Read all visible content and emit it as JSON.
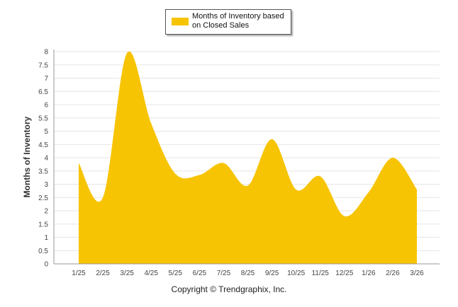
{
  "chart_data": {
    "type": "area",
    "categories": [
      "1/25",
      "2/25",
      "3/25",
      "4/25",
      "5/25",
      "6/25",
      "7/25",
      "8/25",
      "9/25",
      "10/25",
      "11/25",
      "12/25",
      "1/26",
      "2/26",
      "3/26"
    ],
    "series": [
      {
        "name": "Months of Inventory based on Closed Sales",
        "values": [
          3.8,
          2.5,
          7.95,
          5.3,
          3.4,
          3.35,
          3.8,
          2.95,
          4.7,
          2.8,
          3.3,
          1.8,
          2.7,
          4.0,
          2.8
        ]
      }
    ],
    "ylabel": "Months of Inventory",
    "xlabel": "",
    "ylim": [
      0,
      8
    ],
    "yticks": [
      0,
      0.5,
      1,
      1.5,
      2,
      2.5,
      3,
      3.5,
      4,
      4.5,
      5,
      5.5,
      6,
      6.5,
      7,
      7.5,
      8
    ],
    "grid": true,
    "legend_position": "top",
    "colors": {
      "series": "#f7c403",
      "grid": "#e6e6e6",
      "axis": "#999999"
    }
  },
  "legend": {
    "label": "Months of Inventory based on Closed Sales"
  },
  "footer": {
    "copyright": "Copyright © Trendgraphix, Inc."
  }
}
